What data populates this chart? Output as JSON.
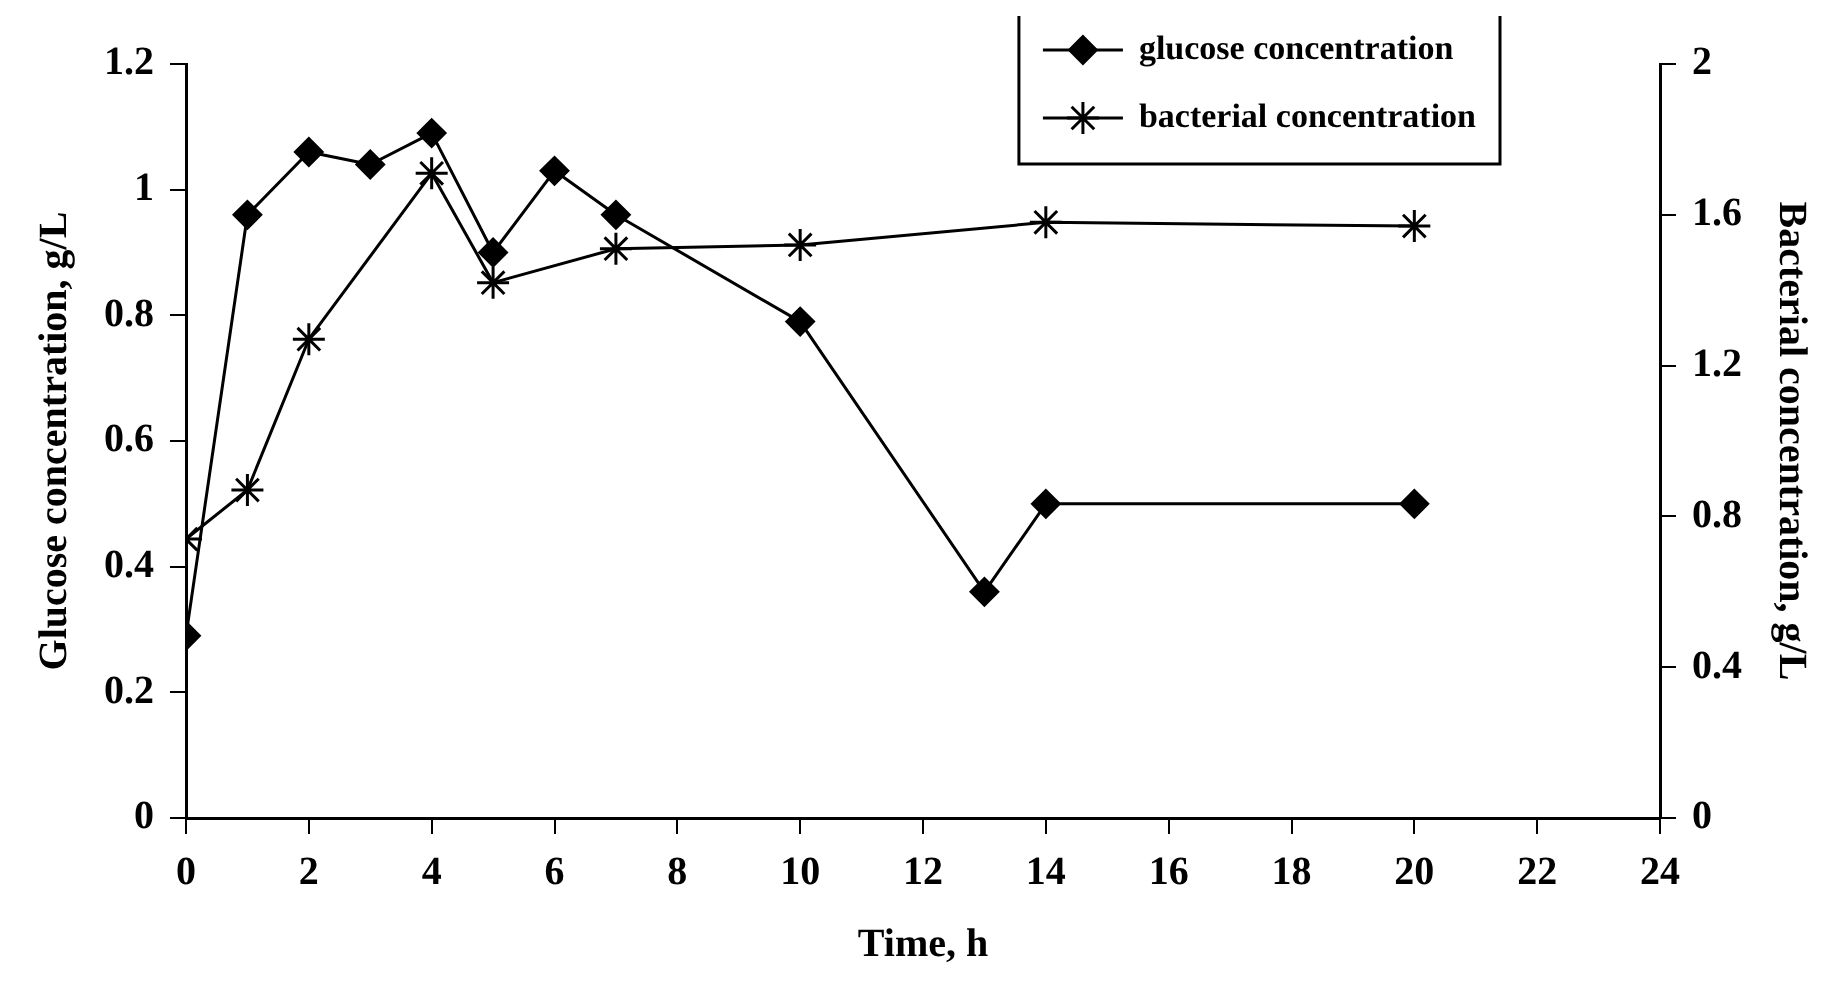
{
  "chart_data": {
    "type": "line",
    "xlabel": "Time, h",
    "ylabel": "Glucose concentration, g/L",
    "y2label": "Bacterial concentration, g/L",
    "xlim": [
      0,
      24
    ],
    "xticks": [
      0,
      2,
      4,
      6,
      8,
      10,
      12,
      14,
      16,
      18,
      20,
      22,
      24
    ],
    "ylim": [
      0,
      1.2
    ],
    "yticks": [
      0,
      0.2,
      0.4,
      0.6,
      0.8,
      1,
      1.2
    ],
    "y2lim": [
      0,
      2
    ],
    "y2ticks": [
      0,
      0.4,
      0.8,
      1.2,
      1.6,
      2
    ],
    "grid": false,
    "legend": "top right",
    "line_style": "solid",
    "series": [
      {
        "name": "glucose concentration",
        "color": "#000000",
        "marker": "diamond",
        "x": [
          0,
          1,
          2,
          3,
          4,
          5,
          6,
          7,
          10,
          13,
          14,
          20
        ],
        "values": [
          0.29,
          0.96,
          1.06,
          1.04,
          1.09,
          0.9,
          1.03,
          0.96,
          0.79,
          0.36,
          0.5,
          0.5
        ]
      },
      {
        "name": "bacterial concentration",
        "color": "#000000",
        "marker": "cross",
        "axis": "y2",
        "x": [
          0,
          1,
          2,
          4,
          5,
          7,
          10,
          14,
          20
        ],
        "values": [
          0.74,
          0.87,
          1.27,
          1.71,
          1.42,
          1.51,
          1.52,
          1.58,
          1.57
        ]
      }
    ]
  }
}
